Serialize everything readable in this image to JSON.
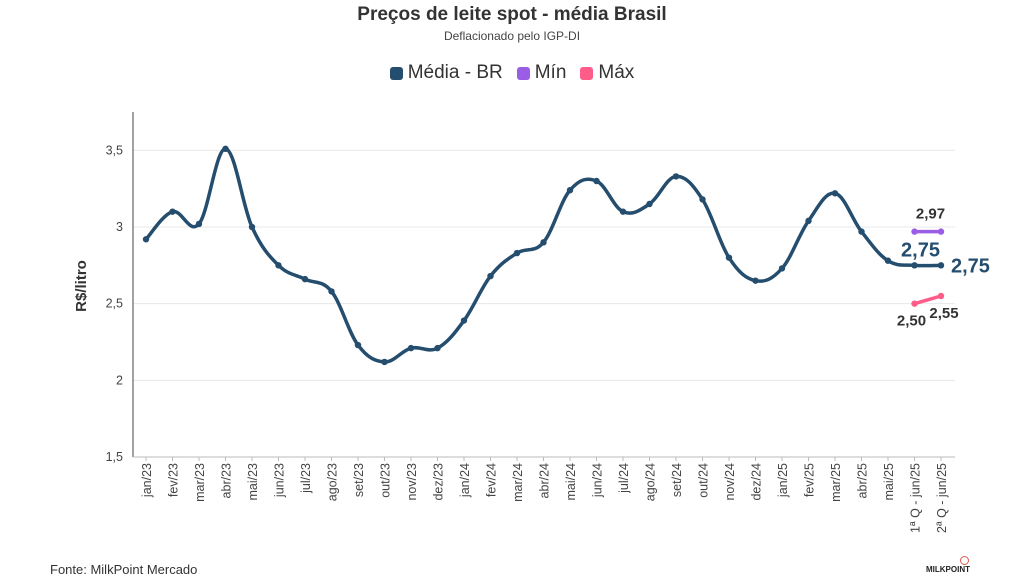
{
  "chart_data": {
    "type": "line",
    "title": "Preços de leite spot - média Brasil",
    "subtitle": "Deflacionado pelo IGP-DI",
    "ylabel": "R$/litro",
    "xlabel": "",
    "ylim": [
      1.5,
      3.75
    ],
    "yticks": [
      "1,5",
      "2",
      "2,5",
      "3",
      "3,5"
    ],
    "grid": "horizontal",
    "legend_position": "top-center",
    "categories": [
      "jan/23",
      "fev/23",
      "mar/23",
      "abr/23",
      "mai/23",
      "jun/23",
      "jul/23",
      "ago/23",
      "set/23",
      "out/23",
      "nov/23",
      "dez/23",
      "jan/24",
      "fev/24",
      "mar/24",
      "abr/24",
      "mai/24",
      "jun/24",
      "jul/24",
      "ago/24",
      "set/24",
      "out/24",
      "nov/24",
      "dez/24",
      "jan/25",
      "fev/25",
      "mar/25",
      "abr/25",
      "mai/25",
      "1ª Q - jun/25",
      "2ª Q - jun/25"
    ],
    "series": [
      {
        "name": "Média - BR",
        "color": "#254d6e",
        "values": [
          2.92,
          3.1,
          3.02,
          3.51,
          3.0,
          2.75,
          2.66,
          2.58,
          2.23,
          2.12,
          2.21,
          2.21,
          2.39,
          2.68,
          2.83,
          2.9,
          3.24,
          3.3,
          3.1,
          3.15,
          3.33,
          3.18,
          2.8,
          2.65,
          2.73,
          3.04,
          3.22,
          2.97,
          2.78,
          2.75,
          2.75
        ]
      },
      {
        "name": "Mín",
        "color": "#9b5de5",
        "values": [
          null,
          null,
          null,
          null,
          null,
          null,
          null,
          null,
          null,
          null,
          null,
          null,
          null,
          null,
          null,
          null,
          null,
          null,
          null,
          null,
          null,
          null,
          null,
          null,
          null,
          null,
          null,
          null,
          null,
          2.97,
          2.97
        ]
      },
      {
        "name": "Máx",
        "color": "#ff5c8a",
        "values": [
          null,
          null,
          null,
          null,
          null,
          null,
          null,
          null,
          null,
          null,
          null,
          null,
          null,
          null,
          null,
          null,
          null,
          null,
          null,
          null,
          null,
          null,
          null,
          null,
          null,
          null,
          null,
          null,
          null,
          2.5,
          2.55
        ]
      }
    ],
    "annotations": [
      {
        "text": "2,97",
        "series": "Mín",
        "index": 29
      },
      {
        "text": "2,75",
        "series": "Média - BR",
        "index": 29
      },
      {
        "text": "2,75",
        "series": "Média - BR",
        "index": 30
      },
      {
        "text": "2,50",
        "series": "Máx",
        "index": 29
      },
      {
        "text": "2,55",
        "series": "Máx",
        "index": 30
      }
    ]
  },
  "footer": {
    "source": "Fonte: MilkPoint Mercado",
    "logo_text": "MILKPOINT"
  }
}
